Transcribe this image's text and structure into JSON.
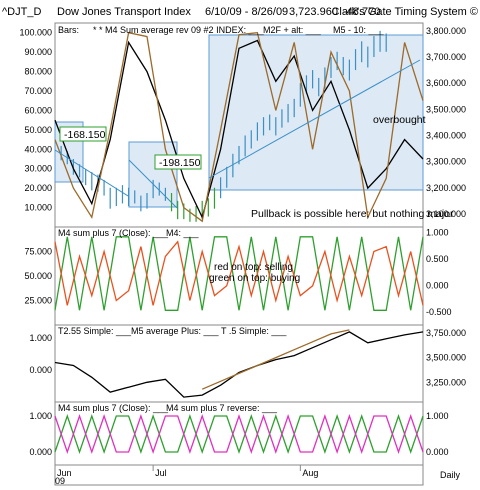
{
  "header": {
    "symbol": "^DJT_D",
    "name": "Dow Jones Transport Index",
    "date_range": "6/10/09 - 8/26/09",
    "last": "3,723.960",
    "change": "-48.770",
    "vendor": "Clark's Gate Timing System ©"
  },
  "x_axis": {
    "months": [
      "Jun",
      "Jul",
      "Aug"
    ],
    "year": "09",
    "period": "Daily"
  },
  "panels": [
    {
      "legend": [
        "Bars:",
        "* * M4 Sum average rev 09 #2 INDEX: ___",
        "M2F + alt: ___",
        "M5 - 10: ___"
      ],
      "left_ticks": [
        "100.000",
        "90.000",
        "80.000",
        "70.000",
        "60.000",
        "50.000",
        "40.000",
        "30.000",
        "20.000",
        "10.000"
      ],
      "right_ticks": [
        "3,800.000",
        "3,700.000",
        "3,600.000",
        "3,500.000",
        "3,400.000",
        "3,300.000",
        "3,200.000",
        "3,100.000"
      ],
      "annotations": {
        "box1": "-168.150",
        "box2": "-198.150",
        "overbought": "overbought",
        "pullback": "Pullback is possible here; but nothing major"
      }
    },
    {
      "legend": [
        "M4 sum plus 7 (Close): ___",
        "M4: ___"
      ],
      "left_ticks": [
        "75.000",
        "50.000",
        "25.000"
      ],
      "right_ticks": [
        "1.000",
        "0.500",
        "0.000",
        "-0.500"
      ],
      "annotations": {
        "line1": "red on top: selling",
        "line2": "green on top: buying"
      }
    },
    {
      "legend": [
        "T2.55 Simple: ___",
        "M5 average Plus: ___",
        "T .5 Simple: ___"
      ],
      "left_ticks": [
        "1.000",
        "0.000"
      ],
      "right_ticks": [
        "3,750.000",
        "3,500.000",
        "3,250.000"
      ]
    },
    {
      "legend": [
        "M4 sum plus 7 (Close): ___",
        "M4 sum plus 7 reverse: ___"
      ],
      "left_ticks": [
        "1.000",
        "0.000"
      ],
      "right_ticks": [
        "1.000",
        "0.000"
      ]
    }
  ],
  "chart_data": {
    "type": "line",
    "x_months": [
      "Jun",
      "Jul",
      "Aug"
    ],
    "price_axis": {
      "ylim": [
        3050,
        3830
      ],
      "ticks": [
        3100,
        3200,
        3300,
        3400,
        3500,
        3600,
        3700,
        3800
      ]
    },
    "osc_axis": {
      "ylim": [
        0,
        105
      ],
      "ticks": [
        10,
        20,
        30,
        40,
        50,
        60,
        70,
        80,
        90,
        100
      ]
    },
    "price_bars": [
      {
        "x": 1,
        "h": 3360,
        "l": 3305
      },
      {
        "x": 2,
        "h": 3340,
        "l": 3290
      },
      {
        "x": 3,
        "h": 3310,
        "l": 3250
      },
      {
        "x": 4,
        "h": 3290,
        "l": 3240
      },
      {
        "x": 5,
        "h": 3270,
        "l": 3210
      },
      {
        "x": 6,
        "h": 3260,
        "l": 3190
      },
      {
        "x": 7,
        "h": 3250,
        "l": 3185
      },
      {
        "x": 8,
        "h": 3230,
        "l": 3170
      },
      {
        "x": 9,
        "h": 3200,
        "l": 3120
      },
      {
        "x": 10,
        "h": 3200,
        "l": 3130
      },
      {
        "x": 11,
        "h": 3210,
        "l": 3140
      },
      {
        "x": 12,
        "h": 3200,
        "l": 3130
      },
      {
        "x": 13,
        "h": 3190,
        "l": 3140
      },
      {
        "x": 14,
        "h": 3170,
        "l": 3110
      },
      {
        "x": 15,
        "h": 3180,
        "l": 3120
      },
      {
        "x": 16,
        "h": 3230,
        "l": 3160
      },
      {
        "x": 17,
        "h": 3220,
        "l": 3170
      },
      {
        "x": 18,
        "h": 3200,
        "l": 3150
      },
      {
        "x": 19,
        "h": 3180,
        "l": 3110
      },
      {
        "x": 20,
        "h": 3150,
        "l": 3080
      },
      {
        "x": 21,
        "h": 3140,
        "l": 3080
      },
      {
        "x": 22,
        "h": 3120,
        "l": 3070
      },
      {
        "x": 23,
        "h": 3130,
        "l": 3070
      },
      {
        "x": 24,
        "h": 3150,
        "l": 3080
      },
      {
        "x": 25,
        "h": 3160,
        "l": 3090
      },
      {
        "x": 26,
        "h": 3200,
        "l": 3120
      },
      {
        "x": 27,
        "h": 3240,
        "l": 3160
      },
      {
        "x": 28,
        "h": 3280,
        "l": 3200
      },
      {
        "x": 29,
        "h": 3330,
        "l": 3240
      },
      {
        "x": 30,
        "h": 3360,
        "l": 3290
      },
      {
        "x": 31,
        "h": 3400,
        "l": 3320
      },
      {
        "x": 32,
        "h": 3420,
        "l": 3350
      },
      {
        "x": 33,
        "h": 3450,
        "l": 3380
      },
      {
        "x": 34,
        "h": 3470,
        "l": 3400
      },
      {
        "x": 35,
        "h": 3480,
        "l": 3420
      },
      {
        "x": 36,
        "h": 3470,
        "l": 3400
      },
      {
        "x": 37,
        "h": 3500,
        "l": 3430
      },
      {
        "x": 38,
        "h": 3520,
        "l": 3450
      },
      {
        "x": 39,
        "h": 3540,
        "l": 3470
      },
      {
        "x": 40,
        "h": 3600,
        "l": 3510
      },
      {
        "x": 41,
        "h": 3630,
        "l": 3560
      },
      {
        "x": 42,
        "h": 3650,
        "l": 3580
      },
      {
        "x": 43,
        "h": 3620,
        "l": 3550
      },
      {
        "x": 44,
        "h": 3660,
        "l": 3580
      },
      {
        "x": 45,
        "h": 3700,
        "l": 3620
      },
      {
        "x": 46,
        "h": 3720,
        "l": 3650
      },
      {
        "x": 47,
        "h": 3700,
        "l": 3630
      },
      {
        "x": 48,
        "h": 3690,
        "l": 3610
      },
      {
        "x": 49,
        "h": 3730,
        "l": 3650
      },
      {
        "x": 50,
        "h": 3760,
        "l": 3680
      },
      {
        "x": 51,
        "h": 3740,
        "l": 3660
      },
      {
        "x": 52,
        "h": 3780,
        "l": 3700
      },
      {
        "x": 53,
        "h": 3800,
        "l": 3720
      },
      {
        "x": 54,
        "h": 3790,
        "l": 3720
      }
    ],
    "series": [
      {
        "panel": 1,
        "color": "#000000",
        "x": [
          0,
          3,
          6,
          9,
          12,
          15,
          18,
          21,
          24,
          27,
          30,
          33,
          36,
          39,
          42,
          45,
          48,
          51,
          54,
          57,
          60
        ],
        "values": [
          55,
          30,
          12,
          45,
          95,
          80,
          55,
          25,
          5,
          40,
          92,
          96,
          75,
          88,
          60,
          75,
          50,
          20,
          30,
          45,
          35
        ]
      },
      {
        "panel": 1,
        "color": "#9c6a2a",
        "x": [
          0,
          3,
          6,
          9,
          12,
          15,
          18,
          21,
          24,
          27,
          30,
          33,
          36,
          39,
          42,
          45,
          48,
          51,
          54,
          57,
          60
        ],
        "values": [
          45,
          20,
          5,
          50,
          100,
          98,
          40,
          10,
          3,
          50,
          99,
          100,
          60,
          95,
          40,
          90,
          70,
          5,
          25,
          95,
          65
        ]
      },
      {
        "panel": 2,
        "color": "#2ea02e",
        "x": [
          0,
          2,
          4,
          6,
          8,
          10,
          12,
          14,
          16,
          18,
          20,
          22,
          24,
          26,
          28,
          30,
          32,
          34,
          36,
          38,
          40,
          42,
          44,
          46,
          48,
          50,
          52,
          54,
          56,
          58,
          60
        ],
        "values": [
          15,
          90,
          15,
          90,
          15,
          90,
          90,
          15,
          90,
          15,
          15,
          90,
          15,
          90,
          90,
          15,
          90,
          15,
          90,
          15,
          90,
          90,
          15,
          90,
          15,
          90,
          15,
          15,
          90,
          15,
          90
        ]
      },
      {
        "panel": 2,
        "color": "#e8521f",
        "x": [
          0,
          2,
          4,
          6,
          8,
          10,
          12,
          14,
          16,
          18,
          20,
          22,
          24,
          26,
          28,
          30,
          32,
          34,
          36,
          38,
          40,
          42,
          44,
          46,
          48,
          50,
          52,
          54,
          56,
          58,
          60
        ],
        "values": [
          85,
          20,
          70,
          30,
          75,
          25,
          35,
          80,
          20,
          70,
          85,
          25,
          75,
          30,
          40,
          80,
          30,
          75,
          25,
          70,
          30,
          40,
          75,
          25,
          70,
          30,
          75,
          80,
          30,
          75,
          20
        ]
      },
      {
        "panel": 3,
        "color": "#000000",
        "x": [
          0,
          3,
          6,
          9,
          12,
          15,
          18,
          21,
          24,
          27,
          30,
          33,
          36,
          39,
          42,
          45,
          48,
          51,
          54,
          57,
          60
        ],
        "values": [
          3450,
          3420,
          3300,
          3150,
          3200,
          3250,
          3280,
          3100,
          3120,
          3220,
          3350,
          3420,
          3480,
          3520,
          3600,
          3680,
          3760,
          3650,
          3690,
          3730,
          3760
        ]
      },
      {
        "panel": 3,
        "color": "#9c6a2a",
        "x": [
          24,
          27,
          30,
          33,
          36,
          39,
          42,
          45,
          48
        ],
        "values": [
          3180,
          3260,
          3340,
          3420,
          3500,
          3580,
          3660,
          3740,
          3780
        ]
      },
      {
        "panel": 4,
        "color": "#2ea02e",
        "x": [
          0,
          2,
          4,
          6,
          8,
          10,
          12,
          14,
          16,
          18,
          20,
          22,
          24,
          26,
          28,
          30,
          32,
          34,
          36,
          38,
          40,
          42,
          44,
          46,
          48,
          50,
          52,
          54,
          56,
          58,
          60
        ],
        "values": [
          0,
          1,
          0,
          1,
          0,
          1,
          1,
          0,
          1,
          0,
          0,
          1,
          0,
          1,
          1,
          0,
          1,
          0,
          1,
          0,
          1,
          1,
          0,
          1,
          0,
          1,
          0,
          0,
          1,
          0,
          1
        ]
      },
      {
        "panel": 4,
        "color": "#e030c0",
        "x": [
          0,
          2,
          4,
          6,
          8,
          10,
          12,
          14,
          16,
          18,
          20,
          22,
          24,
          26,
          28,
          30,
          32,
          34,
          36,
          38,
          40,
          42,
          44,
          46,
          48,
          50,
          52,
          54,
          56,
          58,
          60
        ],
        "values": [
          1,
          0,
          1,
          0,
          1,
          0,
          0,
          1,
          0,
          1,
          1,
          0,
          1,
          0,
          0,
          1,
          0,
          1,
          0,
          1,
          0,
          0,
          1,
          0,
          1,
          0,
          1,
          1,
          0,
          1,
          0
        ]
      }
    ]
  }
}
